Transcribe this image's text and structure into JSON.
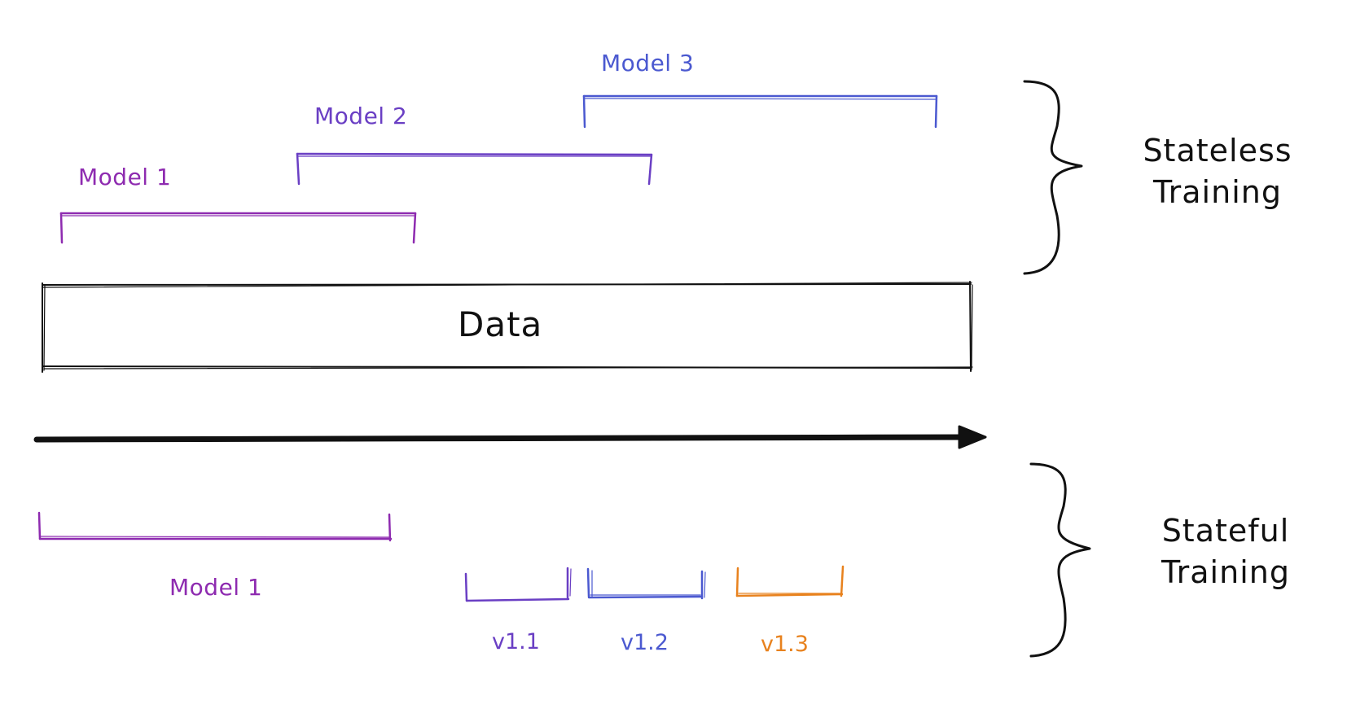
{
  "stateless": {
    "label_line1": "Stateless",
    "label_line2": "Training",
    "models": [
      {
        "label": "Model 1",
        "color": "#8e2bb0"
      },
      {
        "label": "Model 2",
        "color": "#6a3fc4"
      },
      {
        "label": "Model 3",
        "color": "#4b59d0"
      }
    ]
  },
  "data_block": {
    "label": "Data"
  },
  "stateful": {
    "label_line1": "Stateful",
    "label_line2": "Training",
    "model": {
      "label": "Model 1",
      "color": "#8e2bb0"
    },
    "versions": [
      {
        "label": "v1.1",
        "color": "#6a3fc4"
      },
      {
        "label": "v1.2",
        "color": "#4b59d0"
      },
      {
        "label": "v1.3",
        "color": "#e8821e"
      }
    ]
  },
  "colors": {
    "ink": "#111111",
    "background": "#ffffff"
  }
}
